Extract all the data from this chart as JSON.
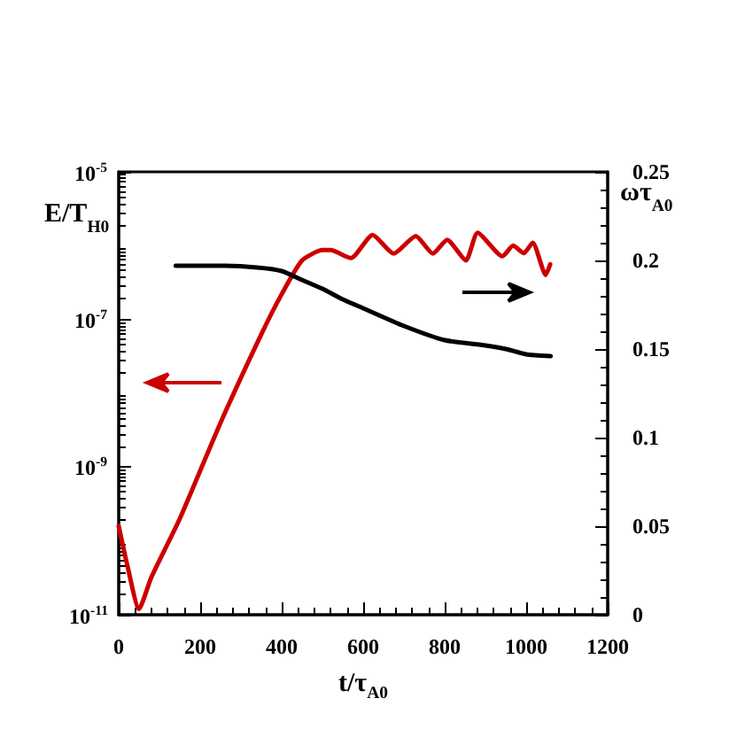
{
  "chart_data": {
    "type": "line",
    "xlabel": "t/τ$_{A0}$",
    "ylabel": "E/T$_{H0}$",
    "y2label": "ωτ$_{A0}$",
    "xlim": [
      0,
      1200
    ],
    "xticks": [
      0,
      200,
      400,
      600,
      800,
      1000,
      1200
    ],
    "ylim": [
      1e-11,
      1e-05
    ],
    "yticks": [
      {
        "value": 1e-11,
        "label": "10$^{-11}$"
      },
      {
        "value": 1e-09,
        "label": "10$^{-9}$"
      },
      {
        "value": 1e-07,
        "label": "10$^{-7}$"
      },
      {
        "value": 1e-05,
        "label": "10$^{-5}$"
      }
    ],
    "y2lim": [
      0,
      0.25
    ],
    "y2ticks": [
      0,
      0.05,
      0.1,
      0.15,
      0.2,
      0.25
    ],
    "log": "y",
    "marker": "none",
    "line_style": "solid",
    "series": [
      {
        "color": "#cc0000",
        "x": [
          0,
          20,
          50,
          80,
          150,
          250,
          350,
          400,
          450,
          500,
          520,
          570,
          623,
          675,
          729,
          771,
          806,
          852,
          881,
          942,
          968,
          994,
          1016,
          1048,
          1059
        ],
        "values": [
          1.6e-10,
          5e-11,
          1.2e-11,
          3.2e-11,
          2e-10,
          4e-09,
          6.3e-08,
          2.2e-07,
          6.3e-07,
          8.7e-07,
          8.7e-07,
          6.8e-07,
          1.4e-06,
          7.8e-07,
          1.35e-06,
          7.8e-07,
          1.2e-06,
          6.3e-07,
          1.5e-06,
          7.2e-07,
          1e-06,
          7.9e-07,
          1.1e-06,
          4e-07,
          5.6e-07
        ]
      },
      {
        "color": "#000000",
        "axis": "y2",
        "x": [
          140,
          250,
          340,
          400,
          450,
          500,
          550,
          600,
          700,
          800,
          900,
          950,
          1000,
          1060
        ],
        "values": [
          0.197,
          0.197,
          0.196,
          0.194,
          0.189,
          0.184,
          0.178,
          0.173,
          0.163,
          0.155,
          0.152,
          0.15,
          0.147,
          0.146
        ]
      }
    ]
  }
}
